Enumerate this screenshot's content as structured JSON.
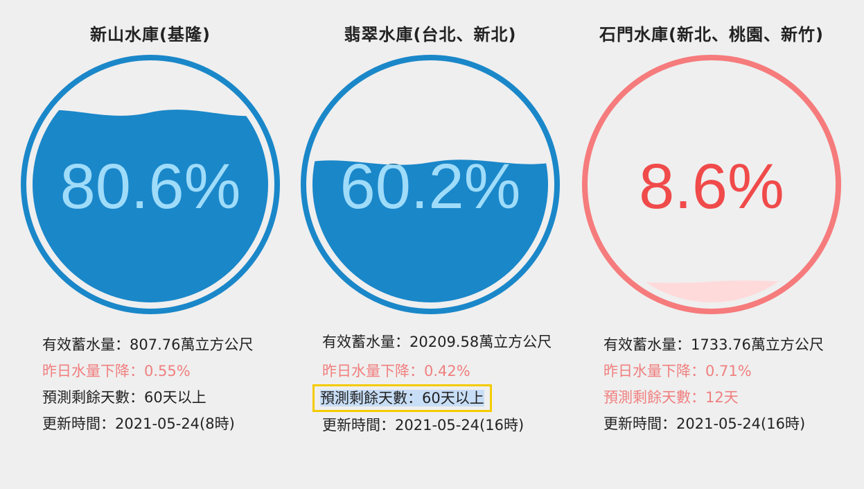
{
  "reservoirs": [
    {
      "name": "新山水庫(基隆)",
      "percent": "80.6%",
      "level_percent": 80.6,
      "storage_label": "有效蓄水量：",
      "storage_value": "807.76萬立方公尺",
      "change_label": "昨日水量下降：",
      "change_value": "0.55%",
      "days_label": "預測剩餘天數：",
      "days_value": "60天以上",
      "updated_label": "更新時間：",
      "updated_value": "2021-05-24(8時)",
      "theme": "blue"
    },
    {
      "name": "翡翠水庫(台北、新北)",
      "percent": "60.2%",
      "level_percent": 60.2,
      "storage_label": "有效蓄水量：",
      "storage_value": "20209.58萬立方公尺",
      "change_label": "昨日水量下降：",
      "change_value": "0.42%",
      "days_label": "預測剩餘天數：",
      "days_value": "60天以上",
      "updated_label": "更新時間：",
      "updated_value": "2021-05-24(16時)",
      "theme": "blue"
    },
    {
      "name": "石門水庫(新北、桃園、新竹)",
      "percent": "8.6%",
      "level_percent": 8.6,
      "storage_label": "有效蓄水量：",
      "storage_value": "1733.76萬立方公尺",
      "change_label": "昨日水量下降：",
      "change_value": "0.71%",
      "days_label": "預測剩餘天數：",
      "days_value": "12天",
      "updated_label": "更新時間：",
      "updated_value": "2021-05-24(16時)",
      "theme": "red"
    }
  ],
  "colors": {
    "blue_ring": "#1a87c9",
    "blue_water": "#1a87c9",
    "blue_text": "#9fdcfa",
    "red_ring": "#f67b7c",
    "red_water": "#ffdadb",
    "red_text": "#f04a4a",
    "warn_text": "#f07f7f",
    "highlight_border": "#f4cb00",
    "highlight_fill": "#c8def6"
  }
}
